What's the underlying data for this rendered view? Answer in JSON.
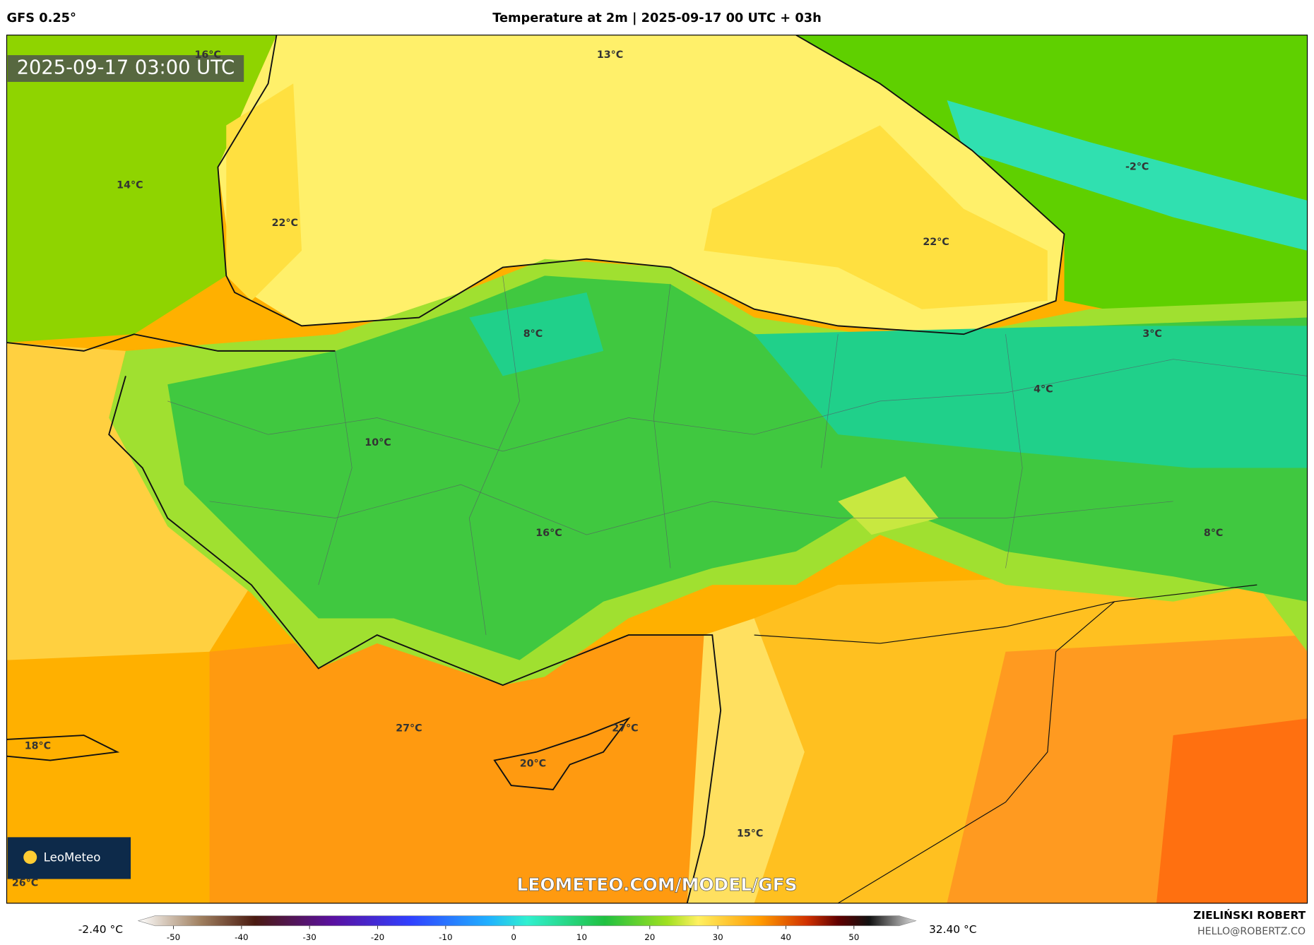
{
  "header": {
    "model": "GFS 0.25°",
    "title": "Temperature at 2m | 2025-09-17 00 UTC + 03h"
  },
  "map": {
    "timestamp": "2025-09-17 03:00 UTC",
    "watermark": "LEOMETEO.COM/MODEL/GFS",
    "logo": "LeoMeteo",
    "labels": [
      "16°C",
      "13°C",
      "14°C",
      "22°C",
      "22°C",
      "-2°C",
      "8°C",
      "3°C",
      "4°C",
      "10°C",
      "16°C",
      "8°C",
      "27°C",
      "27°C",
      "18°C",
      "20°C",
      "15°C",
      "26°C"
    ]
  },
  "colorbar": {
    "min_label": "-2.40 °C",
    "max_label": "32.40 °C",
    "ticks": [
      -50,
      -40,
      -30,
      -20,
      -10,
      0,
      10,
      20,
      30,
      40,
      50
    ]
  },
  "footer": {
    "author": "ZIELIŃSKI ROBERT",
    "email": "HELLO@ROBERTZ.CO"
  }
}
